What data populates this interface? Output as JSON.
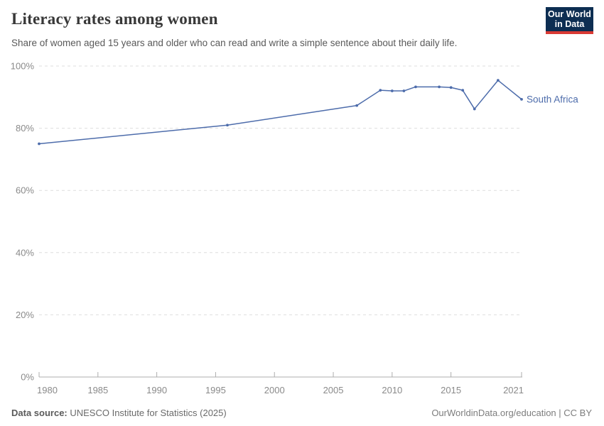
{
  "header": {
    "title": "Literacy rates among women",
    "subtitle": "Share of women aged 15 years and older who can read and write a simple sentence about their daily life.",
    "logo": {
      "line1": "Our World",
      "line2": "in Data",
      "bg_color": "#0d2e52",
      "accent_color": "#d93a34"
    }
  },
  "chart_data": {
    "type": "line",
    "title": "Literacy rates among women",
    "xlabel": "",
    "ylabel": "",
    "xlim": [
      1980,
      2021
    ],
    "ylim": [
      0,
      100
    ],
    "x_ticks": [
      1980,
      1985,
      1990,
      1995,
      2000,
      2005,
      2010,
      2015,
      2021
    ],
    "y_ticks": [
      0,
      20,
      40,
      60,
      80,
      100
    ],
    "y_tick_suffix": "%",
    "grid": "horizontal-dashed",
    "legend_position": "end-of-line-label",
    "series": [
      {
        "name": "South Africa",
        "color": "#4d6cab",
        "points": [
          [
            1980,
            75.0
          ],
          [
            1996,
            81.0
          ],
          [
            2007,
            87.3
          ],
          [
            2009,
            92.2
          ],
          [
            2010,
            92.0
          ],
          [
            2011,
            92.0
          ],
          [
            2012,
            93.3
          ],
          [
            2014,
            93.3
          ],
          [
            2015,
            93.1
          ],
          [
            2016,
            92.2
          ],
          [
            2017,
            86.2
          ],
          [
            2019,
            95.4
          ],
          [
            2021,
            89.3
          ]
        ]
      }
    ]
  },
  "footer": {
    "source_label": "Data source:",
    "source_text": " UNESCO Institute for Statistics (2025)",
    "right_text": "OurWorldinData.org/education | CC BY"
  }
}
